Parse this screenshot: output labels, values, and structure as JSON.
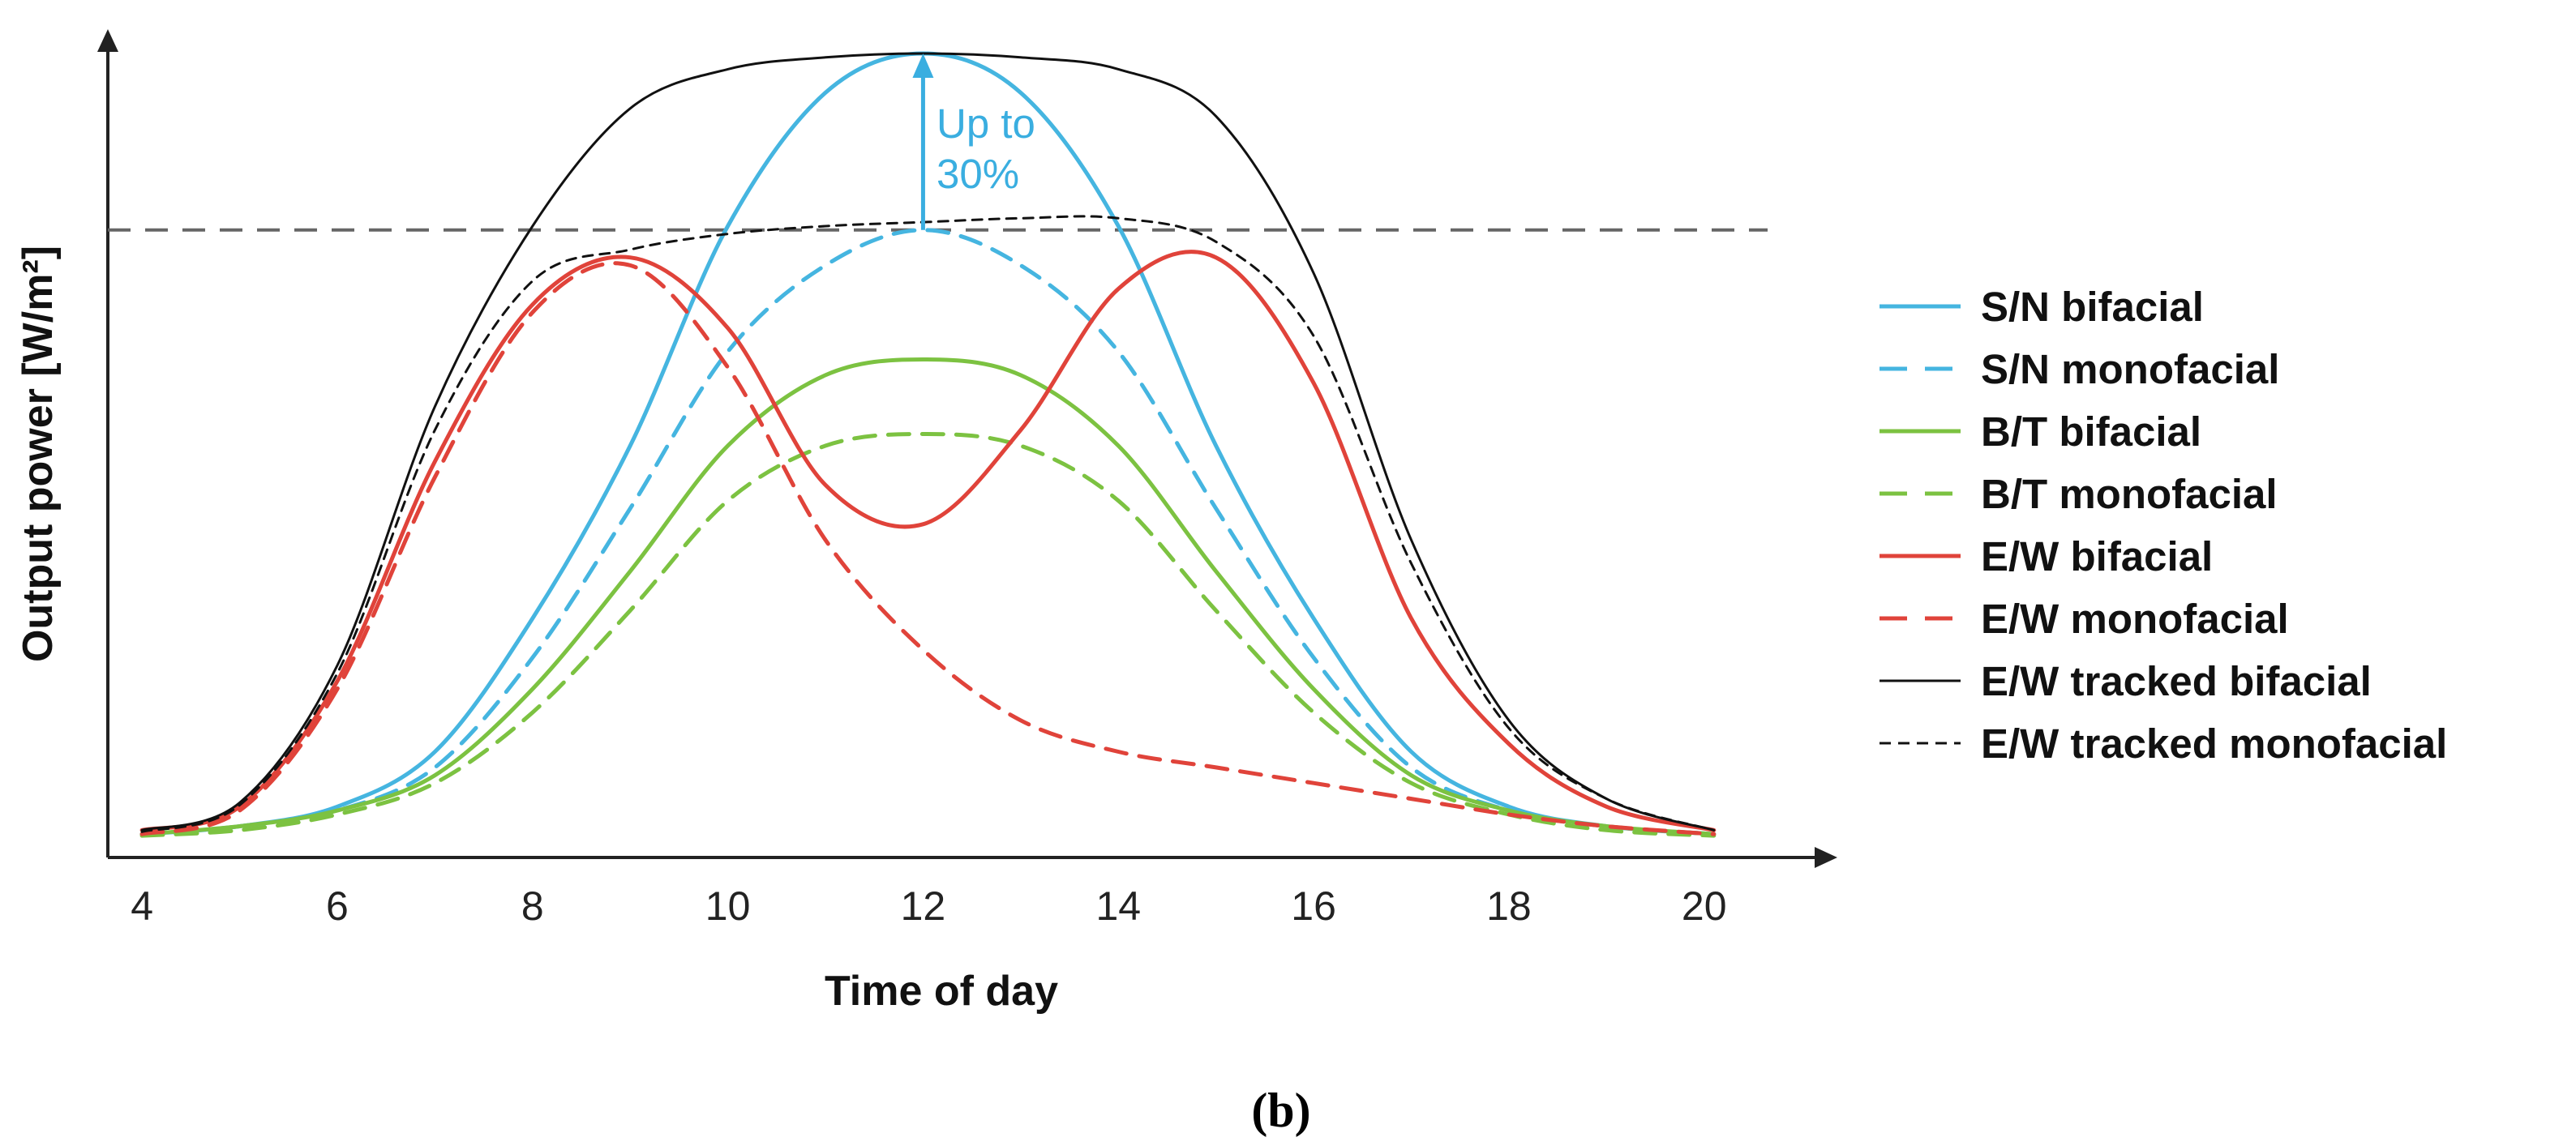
{
  "chart_data": {
    "type": "line",
    "xlabel": "Time of day",
    "ylabel": "Output power [W/m²]",
    "xlim": [
      3.65,
      20.65
    ],
    "ylim": [
      0,
      100
    ],
    "xticks": [
      4,
      6,
      8,
      10,
      12,
      14,
      16,
      18,
      20
    ],
    "reference_line_y": 77.5,
    "annotation": {
      "lines": [
        "Up to",
        "30%"
      ],
      "x": 12,
      "y_from": 77.5,
      "y_to": 100
    },
    "panel_label": "(b)",
    "series": [
      {
        "name": "S/N bifacial",
        "color": "#45b5e0",
        "dash": "solid",
        "x": [
          4,
          5,
          6,
          7,
          8,
          9,
          10,
          11,
          12,
          13,
          14,
          15,
          16,
          17,
          18,
          19,
          20.1
        ],
        "y": [
          0.5,
          1.5,
          4,
          11,
          28,
          50,
          78,
          95,
          100,
          95,
          78,
          50,
          28,
          11,
          4,
          1.5,
          0.5
        ]
      },
      {
        "name": "S/N monofacial",
        "color": "#45b5e0",
        "dash": "dashed",
        "x": [
          4,
          5,
          6,
          7,
          8,
          9,
          10,
          11,
          12,
          13,
          14,
          15,
          16,
          17,
          18,
          19,
          20.1
        ],
        "y": [
          0.5,
          1.5,
          3.5,
          9,
          23,
          42,
          62,
          73,
          77.5,
          73,
          62,
          42,
          23,
          9,
          3.5,
          1.5,
          0.5
        ]
      },
      {
        "name": "B/T bifacial",
        "color": "#7cc241",
        "dash": "solid",
        "x": [
          4,
          5,
          6,
          7,
          8,
          9,
          10,
          11,
          12,
          13,
          14,
          15,
          16,
          17,
          18,
          19,
          20.1
        ],
        "y": [
          0.5,
          1.5,
          3.5,
          8,
          19,
          34,
          50,
          59,
          61,
          59,
          50,
          34,
          19,
          8,
          3.5,
          1.5,
          0.5
        ]
      },
      {
        "name": "B/T monofacial",
        "color": "#7cc241",
        "dash": "dashed",
        "x": [
          4,
          5,
          6,
          7,
          8,
          9,
          10,
          11,
          12,
          13,
          14,
          15,
          16,
          17,
          18,
          19,
          20.1
        ],
        "y": [
          0.3,
          1,
          3,
          7,
          16,
          29,
          43,
          50,
          51.5,
          50,
          43,
          29,
          16,
          7,
          3,
          1,
          0.3
        ]
      },
      {
        "name": "E/W bifacial",
        "color": "#e0433a",
        "dash": "solid",
        "x": [
          4,
          5,
          6,
          7,
          8,
          9,
          10,
          11,
          12,
          13,
          14,
          15,
          16,
          17,
          18,
          19,
          20.1
        ],
        "y": [
          1,
          4,
          20,
          48,
          68,
          74,
          65,
          45,
          40,
          52,
          70,
          74,
          58,
          28,
          12,
          4,
          1
        ]
      },
      {
        "name": "E/W monofacial",
        "color": "#e0433a",
        "dash": "dashed",
        "x": [
          4,
          5,
          6,
          7,
          8,
          9,
          10,
          11,
          12,
          13,
          14,
          15,
          16,
          17,
          18,
          19,
          20.1
        ],
        "y": [
          0.5,
          3.5,
          19,
          46,
          67,
          73,
          60,
          38,
          24,
          15,
          11,
          9,
          7,
          5,
          3,
          1.5,
          0.5
        ]
      },
      {
        "name": "E/W tracked bifacial",
        "color": "#111111",
        "dash": "solid",
        "x": [
          4,
          5,
          6,
          7,
          8,
          9,
          10,
          11,
          12,
          13,
          14,
          15,
          16,
          17,
          18,
          19,
          20.1
        ],
        "y": [
          1,
          4.5,
          22,
          55,
          78,
          93,
          98,
          99.5,
          100,
          99.5,
          98,
          92,
          72,
          38,
          15,
          5,
          1
        ]
      },
      {
        "name": "E/W tracked monofacial",
        "color": "#111111",
        "dash": "dashed",
        "x": [
          4,
          5,
          6,
          7,
          8,
          9,
          10,
          11,
          12,
          13,
          14,
          15,
          16,
          17,
          18,
          19,
          20.1
        ],
        "y": [
          0.8,
          4.2,
          21,
          52,
          71,
          75,
          77,
          78,
          78.5,
          79,
          79,
          76,
          64,
          35,
          14,
          5,
          1
        ]
      }
    ]
  }
}
